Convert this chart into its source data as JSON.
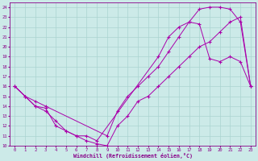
{
  "xlabel": "Windchill (Refroidissement éolien,°C)",
  "xlim": [
    -0.5,
    23.5
  ],
  "ylim": [
    10,
    24.5
  ],
  "yticks": [
    10,
    11,
    12,
    13,
    14,
    15,
    16,
    17,
    18,
    19,
    20,
    21,
    22,
    23,
    24
  ],
  "xticks": [
    0,
    1,
    2,
    3,
    4,
    5,
    6,
    7,
    8,
    9,
    10,
    11,
    12,
    13,
    14,
    15,
    16,
    17,
    18,
    19,
    20,
    21,
    22,
    23
  ],
  "bg_color": "#cceae8",
  "grid_color": "#aad4d0",
  "line_color": "#aa00aa",
  "line1_x": [
    0,
    1,
    2,
    3,
    4,
    5,
    6,
    7,
    8,
    14,
    15,
    16,
    17,
    18,
    19,
    20,
    21,
    22,
    23
  ],
  "line1_y": [
    16,
    15,
    14,
    13.8,
    12,
    11.5,
    11,
    11,
    10.5,
    19,
    21,
    22,
    22.5,
    22.3,
    18.8,
    18.5,
    19,
    18.5,
    16
  ],
  "line2_x": [
    0,
    1,
    2,
    3,
    9,
    10,
    11,
    12,
    13,
    14,
    15,
    16,
    17,
    18,
    19,
    20,
    21,
    22,
    23
  ],
  "line2_y": [
    16,
    15,
    14.5,
    14,
    11,
    13.5,
    15,
    16,
    17,
    18,
    19.5,
    21,
    22.5,
    23.8,
    24,
    24,
    23.8,
    22.5,
    16
  ],
  "line3_x": [
    0,
    1,
    2,
    3,
    4,
    5,
    6,
    7,
    8,
    9,
    10,
    11,
    12,
    13,
    14,
    15,
    16,
    17,
    18,
    19,
    20,
    21,
    22,
    23
  ],
  "line3_y": [
    16,
    15,
    14,
    13.5,
    12.5,
    11.5,
    11,
    10.5,
    10.2,
    10,
    12,
    13,
    14.5,
    15,
    16,
    17,
    18,
    19,
    20,
    20.5,
    21.5,
    22.5,
    23,
    16
  ]
}
